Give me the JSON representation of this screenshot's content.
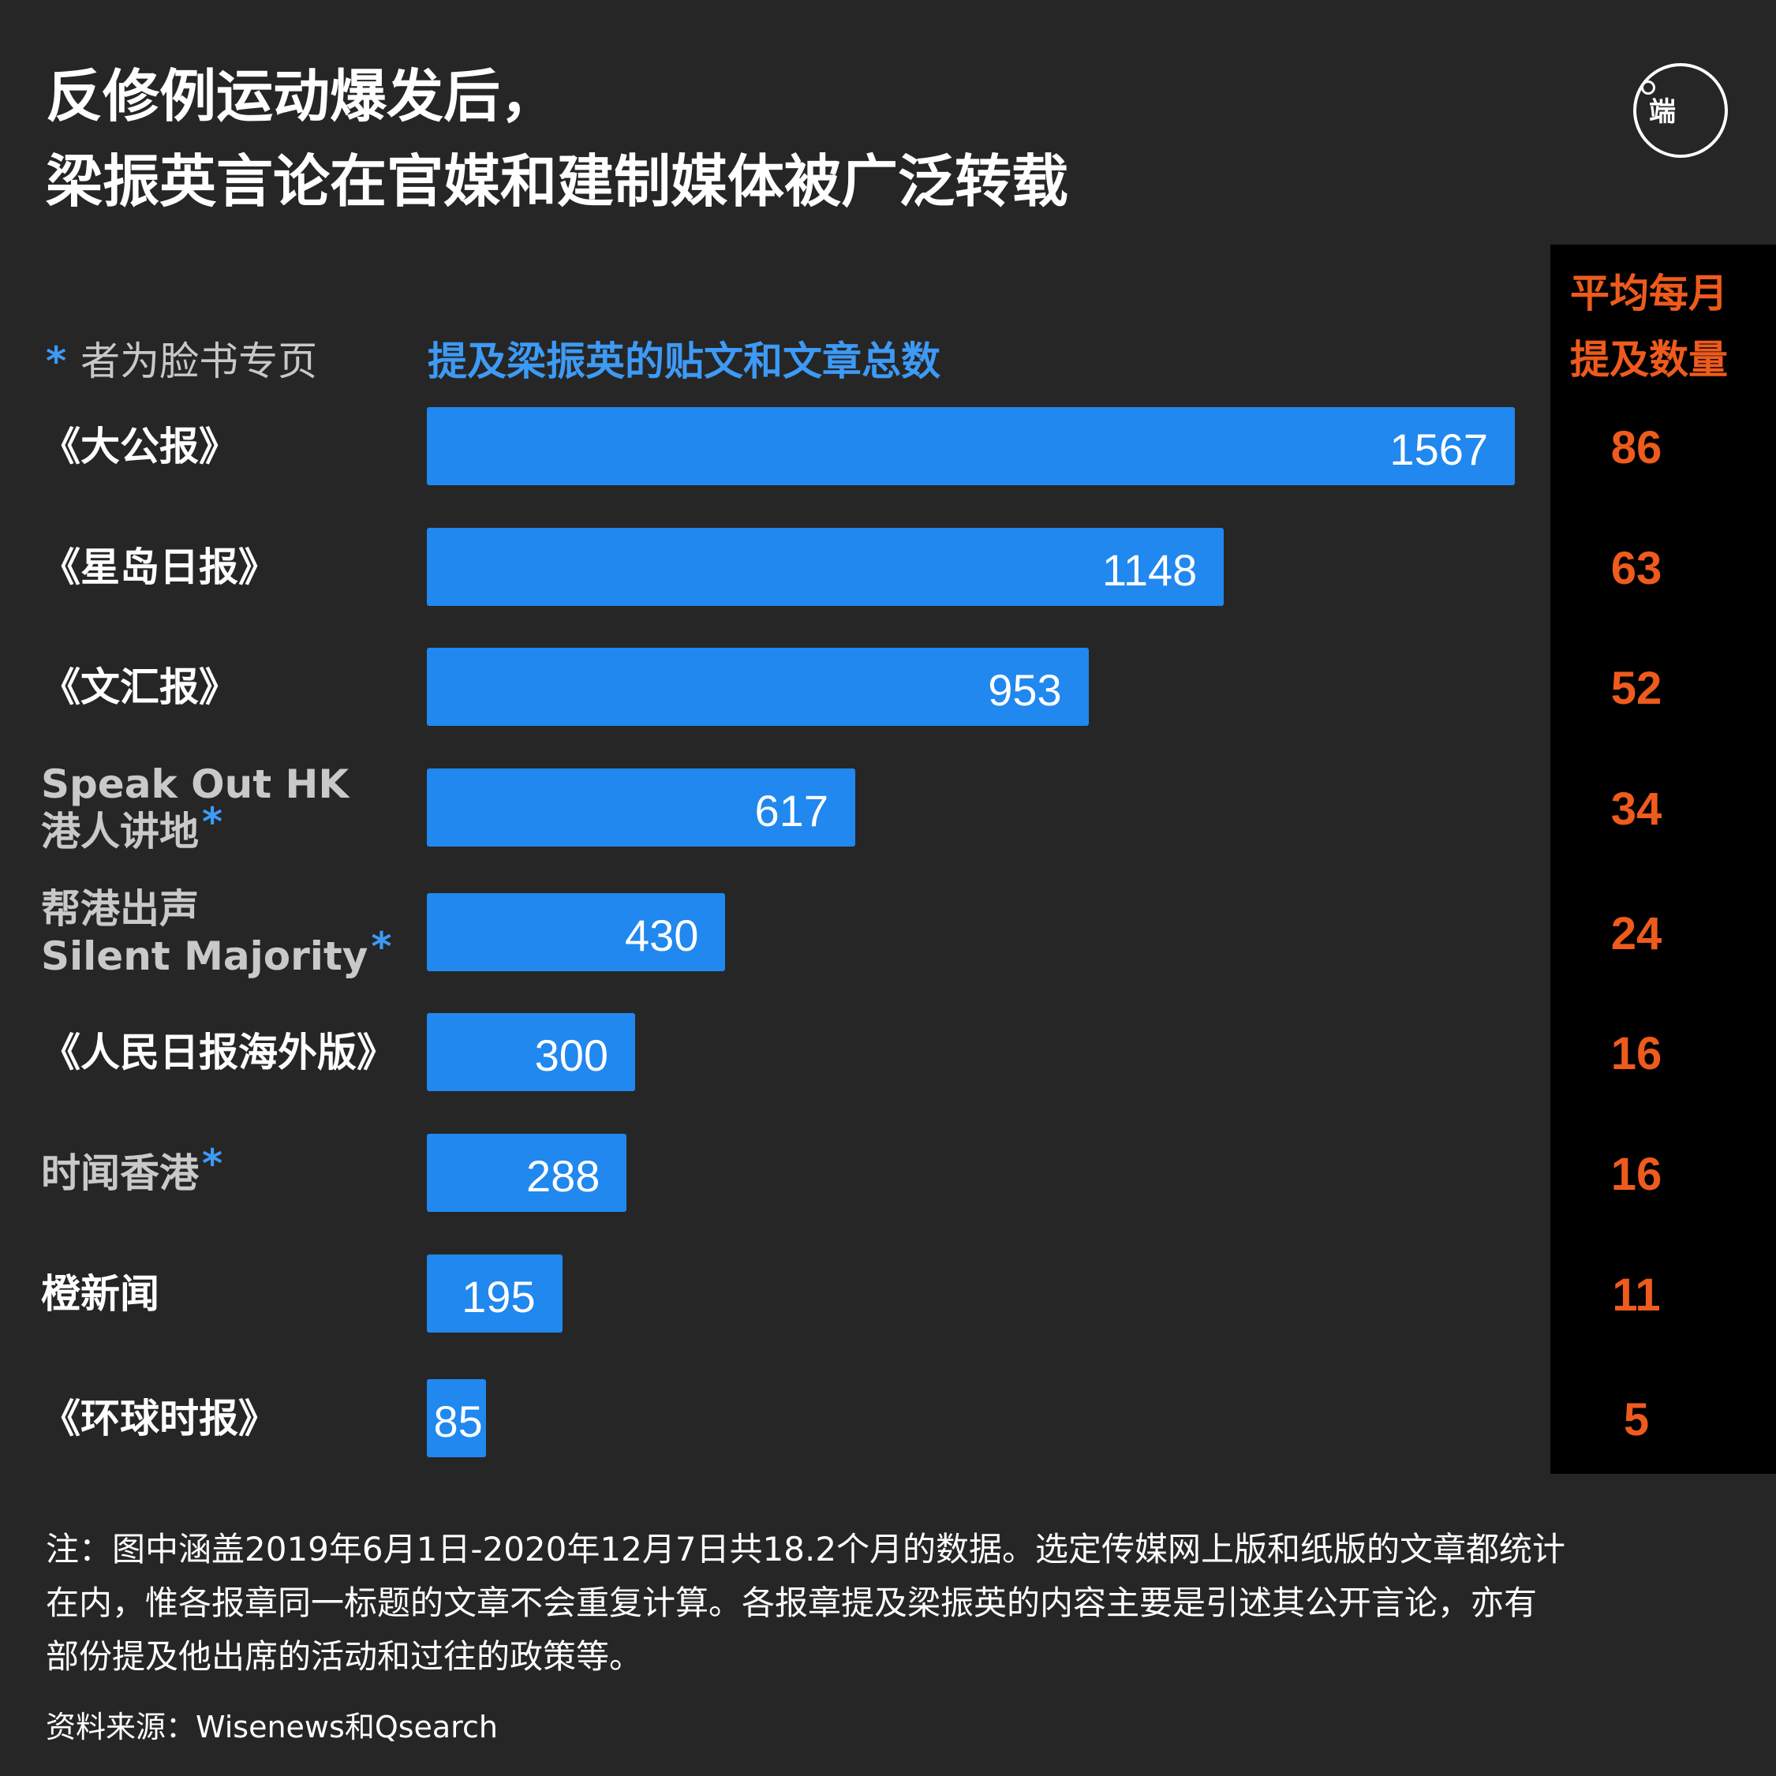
{
  "title": {
    "line1": "反修例运动爆发后，",
    "line2": "梁振英言论在官媒和建制媒体被广泛转载"
  },
  "logo": {
    "icon": "initium-logo",
    "text": "端"
  },
  "legend_note": {
    "star": "*",
    "text": "者为脸书专页"
  },
  "colors": {
    "background": "#262626",
    "bar": "#2088ee",
    "accent_blue": "#3d9af5",
    "accent_orange": "#ee5b1d",
    "panel": "#000000",
    "label_grey": "#c9c9c9"
  },
  "chart_data": {
    "type": "bar",
    "orientation": "horizontal",
    "title": "提及梁振英的贴文和文章总数",
    "categories": [
      "《大公报》",
      "《星岛日报》",
      "《文汇报》",
      "Speak Out HK 港人讲地*",
      "帮港出声 Silent Majority*",
      "《人民日报海外版》",
      "时闻香港*",
      "橙新闻",
      "《环球时报》"
    ],
    "label_lines": [
      [
        "《大公报》"
      ],
      [
        "《星岛日报》"
      ],
      [
        "《文汇报》"
      ],
      [
        "Speak Out HK",
        "港人讲地"
      ],
      [
        "帮港出声",
        "Silent Majority"
      ],
      [
        "《人民日报海外版》"
      ],
      [
        "时闻香港"
      ],
      [
        "橙新闻"
      ],
      [
        "《环球时报》"
      ]
    ],
    "facebook_page": [
      false,
      false,
      false,
      true,
      true,
      false,
      true,
      false,
      false
    ],
    "values": [
      1567,
      1148,
      953,
      617,
      430,
      300,
      288,
      195,
      85
    ],
    "xlim": [
      0,
      1567
    ],
    "secondary_column": {
      "title_lines": [
        "平均每月",
        "提及数量"
      ],
      "values": [
        86,
        63,
        52,
        34,
        24,
        16,
        16,
        11,
        5
      ]
    }
  },
  "footnote": {
    "lines": [
      "注：图中涵盖2019年6月1日-2020年12月7日共18.2个月的数据。选定传媒网上版和纸版的文章都统计",
      "在内，惟各报章同一标题的文章不会重复计算。各报章提及梁振英的内容主要是引述其公开言论，亦有",
      "部份提及他出席的活动和过往的政策等。"
    ]
  },
  "source": "资料来源：Wisenews和Qsearch"
}
